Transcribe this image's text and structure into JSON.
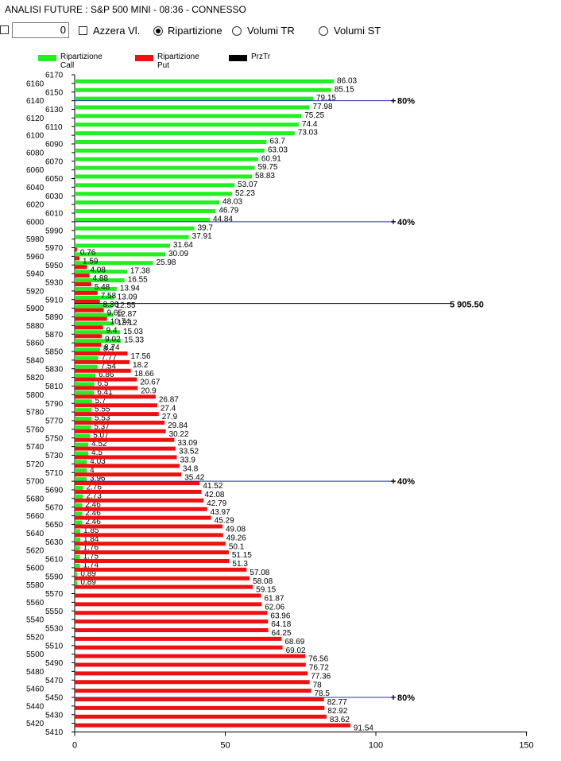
{
  "window": {
    "title": "ANALISI FUTURE : S&P 500 MINI - 08:36 - CONNESSO"
  },
  "toolbar": {
    "number_value": "0",
    "checkbox_label": "Azzera Vl.",
    "radio_options": [
      "Ripartizione",
      "Volumi TR",
      "Volumi ST"
    ],
    "selected_option": "Ripartizione"
  },
  "colors": {
    "call": "#22ee22",
    "put": "#ee1111",
    "price": "#000000",
    "marker": "#2233bb"
  },
  "chart_data": {
    "type": "bar",
    "orientation": "horizontal",
    "legend": [
      "Ripartizione Call",
      "Ripartizione Put",
      "PrzTr"
    ],
    "legend_placement": "top-left",
    "x_ticks": [
      "0",
      "50",
      "100",
      "150"
    ],
    "xlim": [
      0,
      150
    ],
    "strike_labels": [
      "6170",
      "6160",
      "6150",
      "6140",
      "6130",
      "6120",
      "6110",
      "6100",
      "6090",
      "6080",
      "6070",
      "6060",
      "6050",
      "6040",
      "6030",
      "6020",
      "6010",
      "6000",
      "5990",
      "5980",
      "5970",
      "5960",
      "5950",
      "5940",
      "5930",
      "5920",
      "5910",
      "5900",
      "5890",
      "5880",
      "5870",
      "5860",
      "5850",
      "5840",
      "5830",
      "5820",
      "5810",
      "5800",
      "5790",
      "5780",
      "5770",
      "5760",
      "5750",
      "5740",
      "5730",
      "5720",
      "5710",
      "5700",
      "5690",
      "5680",
      "5670",
      "5660",
      "5650",
      "5640",
      "5630",
      "5620",
      "5610",
      "5600",
      "5590",
      "5580",
      "5570",
      "5560",
      "5550",
      "5540",
      "5530",
      "5520",
      "5510",
      "5500",
      "5490",
      "5480",
      "5470",
      "5460",
      "5450",
      "5440",
      "5430",
      "5420",
      "5410"
    ],
    "call_series": [
      {
        "strike": 6160,
        "value": 86.03
      },
      {
        "strike": 6150,
        "value": 85.15
      },
      {
        "strike": 6140,
        "value": 79.15
      },
      {
        "strike": 6130,
        "value": 77.98
      },
      {
        "strike": 6120,
        "value": 75.25
      },
      {
        "strike": 6110,
        "value": 74.4
      },
      {
        "strike": 6100,
        "value": 73.03
      },
      {
        "strike": 6090,
        "value": 63.7
      },
      {
        "strike": 6080,
        "value": 63.03
      },
      {
        "strike": 6070,
        "value": 60.91
      },
      {
        "strike": 6060,
        "value": 59.75
      },
      {
        "strike": 6050,
        "value": 58.83
      },
      {
        "strike": 6040,
        "value": 53.07
      },
      {
        "strike": 6030,
        "value": 52.23
      },
      {
        "strike": 6020,
        "value": 48.03
      },
      {
        "strike": 6010,
        "value": 46.79
      },
      {
        "strike": 6000,
        "value": 44.84
      },
      {
        "strike": 5990,
        "value": 39.7
      },
      {
        "strike": 5980,
        "value": 37.91
      },
      {
        "strike": 5970,
        "value": 31.64
      },
      {
        "strike": 5960,
        "value": 30.09
      },
      {
        "strike": 5950,
        "value": 25.98
      },
      {
        "strike": 5940,
        "value": 17.38
      },
      {
        "strike": 5930,
        "value": 16.55
      },
      {
        "strike": 5920,
        "value": 13.94
      },
      {
        "strike": 5910,
        "value": 13.09
      },
      {
        "strike": 5900,
        "value": 12.55
      },
      {
        "strike": 5890,
        "value": 12.87
      },
      {
        "strike": 5880,
        "value": 13.12
      },
      {
        "strike": 5870,
        "value": 15.03
      },
      {
        "strike": 5860,
        "value": 15.33
      },
      {
        "strike": 5850,
        "value": 8.4
      },
      {
        "strike": 5840,
        "value": 7.77
      },
      {
        "strike": 5830,
        "value": 7.54
      },
      {
        "strike": 5820,
        "value": 6.86
      },
      {
        "strike": 5810,
        "value": 6.5
      },
      {
        "strike": 5800,
        "value": 6.41
      },
      {
        "strike": 5790,
        "value": 5.7
      },
      {
        "strike": 5780,
        "value": 5.55
      },
      {
        "strike": 5770,
        "value": 5.53
      },
      {
        "strike": 5760,
        "value": 5.37
      },
      {
        "strike": 5750,
        "value": 5.07
      },
      {
        "strike": 5740,
        "value": 4.52
      },
      {
        "strike": 5730,
        "value": 4.5
      },
      {
        "strike": 5720,
        "value": 4.03
      },
      {
        "strike": 5710,
        "value": 4
      },
      {
        "strike": 5700,
        "value": 3.96
      },
      {
        "strike": 5690,
        "value": 2.76
      },
      {
        "strike": 5680,
        "value": 2.73
      },
      {
        "strike": 5670,
        "value": 2.46
      },
      {
        "strike": 5660,
        "value": 2.46
      },
      {
        "strike": 5650,
        "value": 2.46
      },
      {
        "strike": 5640,
        "value": 1.85
      },
      {
        "strike": 5630,
        "value": 1.84
      },
      {
        "strike": 5620,
        "value": 1.76
      },
      {
        "strike": 5610,
        "value": 1.75
      },
      {
        "strike": 5600,
        "value": 1.74
      },
      {
        "strike": 5590,
        "value": 0.89
      },
      {
        "strike": 5580,
        "value": 0.89
      }
    ],
    "put_series": [
      {
        "strike": 5970,
        "value": 0.76
      },
      {
        "strike": 5960,
        "value": 1.59
      },
      {
        "strike": 5950,
        "value": 4.08
      },
      {
        "strike": 5940,
        "value": 4.88
      },
      {
        "strike": 5930,
        "value": 5.48
      },
      {
        "strike": 5920,
        "value": 7.58
      },
      {
        "strike": 5910,
        "value": 8.36
      },
      {
        "strike": 5900,
        "value": 9.65
      },
      {
        "strike": 5890,
        "value": 10.74
      },
      {
        "strike": 5880,
        "value": 9.4
      },
      {
        "strike": 5870,
        "value": 9.02
      },
      {
        "strike": 5860,
        "value": 8.74
      },
      {
        "strike": 5850,
        "value": 17.56
      },
      {
        "strike": 5840,
        "value": 18.2
      },
      {
        "strike": 5830,
        "value": 18.66
      },
      {
        "strike": 5820,
        "value": 20.67
      },
      {
        "strike": 5810,
        "value": 20.9
      },
      {
        "strike": 5800,
        "value": 26.87
      },
      {
        "strike": 5790,
        "value": 27.4
      },
      {
        "strike": 5780,
        "value": 27.9
      },
      {
        "strike": 5770,
        "value": 29.84
      },
      {
        "strike": 5760,
        "value": 30.22
      },
      {
        "strike": 5750,
        "value": 33.09
      },
      {
        "strike": 5740,
        "value": 33.52
      },
      {
        "strike": 5730,
        "value": 33.9
      },
      {
        "strike": 5720,
        "value": 34.8
      },
      {
        "strike": 5710,
        "value": 35.42
      },
      {
        "strike": 5700,
        "value": 41.52
      },
      {
        "strike": 5690,
        "value": 42.08
      },
      {
        "strike": 5680,
        "value": 42.79
      },
      {
        "strike": 5670,
        "value": 43.97
      },
      {
        "strike": 5660,
        "value": 45.29
      },
      {
        "strike": 5650,
        "value": 49.08
      },
      {
        "strike": 5640,
        "value": 49.26
      },
      {
        "strike": 5630,
        "value": 50.1
      },
      {
        "strike": 5620,
        "value": 51.15
      },
      {
        "strike": 5610,
        "value": 51.3
      },
      {
        "strike": 5600,
        "value": 57.08
      },
      {
        "strike": 5590,
        "value": 58.08
      },
      {
        "strike": 5580,
        "value": 59.15
      },
      {
        "strike": 5570,
        "value": 61.87
      },
      {
        "strike": 5560,
        "value": 62.06
      },
      {
        "strike": 5550,
        "value": 63.96
      },
      {
        "strike": 5540,
        "value": 64.18
      },
      {
        "strike": 5530,
        "value": 64.25
      },
      {
        "strike": 5520,
        "value": 68.69
      },
      {
        "strike": 5510,
        "value": 69.02
      },
      {
        "strike": 5500,
        "value": 76.56
      },
      {
        "strike": 5490,
        "value": 76.72
      },
      {
        "strike": 5480,
        "value": 77.36
      },
      {
        "strike": 5470,
        "value": 78
      },
      {
        "strike": 5460,
        "value": 78.5
      },
      {
        "strike": 5450,
        "value": 82.77
      },
      {
        "strike": 5440,
        "value": 82.92
      },
      {
        "strike": 5430,
        "value": 83.62
      },
      {
        "strike": 5420,
        "value": 91.54
      }
    ],
    "price": {
      "value": 5905.5,
      "label": "5 905.50"
    },
    "markers": [
      {
        "strike": 6140,
        "label": "80%"
      },
      {
        "strike": 6000,
        "label": "40%"
      },
      {
        "strike": 5700,
        "label": "40%"
      },
      {
        "strike": 5450,
        "label": "80%"
      }
    ]
  }
}
